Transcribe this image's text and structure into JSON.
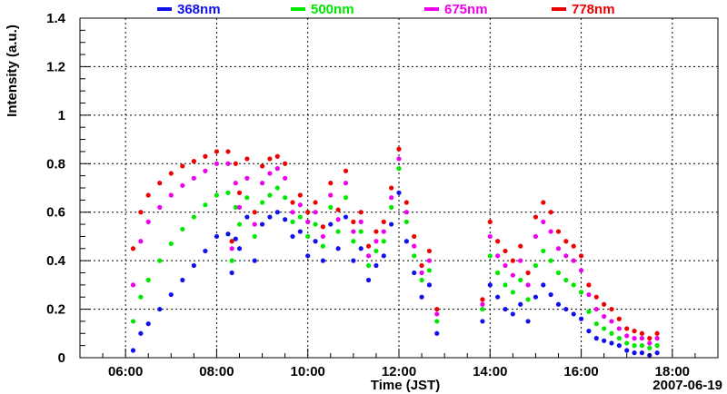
{
  "chart_data": {
    "type": "scatter",
    "title": "",
    "xlabel": "Time (JST)",
    "ylabel": "Intensity (a.u.)",
    "date_label": "2007-06-19",
    "xlim": [
      "05:00",
      "19:00"
    ],
    "ylim": [
      0,
      1.4
    ],
    "grid": true,
    "legend_position": "top",
    "x_ticks": [
      "06:00",
      "08:00",
      "10:00",
      "12:00",
      "14:00",
      "16:00",
      "18:00"
    ],
    "y_ticks": [
      "0",
      "0.2",
      "0.4",
      "0.6",
      "0.8",
      "1",
      "1.2",
      "1.4"
    ],
    "series": [
      {
        "name": "368nm",
        "color": "#1010ee",
        "x": [
          "06:10",
          "06:20",
          "06:30",
          "06:45",
          "07:00",
          "07:15",
          "07:30",
          "07:45",
          "08:00",
          "08:15",
          "08:20",
          "08:25",
          "08:30",
          "08:40",
          "08:50",
          "09:00",
          "09:10",
          "09:20",
          "09:30",
          "09:40",
          "09:50",
          "10:00",
          "10:10",
          "10:20",
          "10:30",
          "10:40",
          "10:50",
          "11:00",
          "11:10",
          "11:20",
          "11:30",
          "11:40",
          "11:50",
          "12:00",
          "12:10",
          "12:20",
          "12:30",
          "12:40",
          "12:50",
          "13:50",
          "14:00",
          "14:10",
          "14:20",
          "14:30",
          "14:40",
          "14:50",
          "15:00",
          "15:10",
          "15:20",
          "15:30",
          "15:40",
          "15:50",
          "16:00",
          "16:10",
          "16:20",
          "16:30",
          "16:40",
          "16:50",
          "17:00",
          "17:10",
          "17:20",
          "17:30",
          "17:40"
        ],
        "y": [
          0.03,
          0.1,
          0.14,
          0.2,
          0.26,
          0.32,
          0.38,
          0.44,
          0.5,
          0.51,
          0.35,
          0.49,
          0.45,
          0.58,
          0.4,
          0.55,
          0.58,
          0.6,
          0.57,
          0.5,
          0.52,
          0.42,
          0.48,
          0.4,
          0.55,
          0.45,
          0.58,
          0.4,
          0.45,
          0.32,
          0.38,
          0.42,
          0.55,
          0.68,
          0.48,
          0.35,
          0.25,
          0.3,
          0.1,
          0.15,
          0.3,
          0.25,
          0.2,
          0.18,
          0.22,
          0.15,
          0.25,
          0.3,
          0.26,
          0.22,
          0.2,
          0.18,
          0.16,
          0.11,
          0.08,
          0.07,
          0.06,
          0.05,
          0.03,
          0.02,
          0.02,
          0.01,
          0.02
        ]
      },
      {
        "name": "500nm",
        "color": "#00e800",
        "x": [
          "06:10",
          "06:20",
          "06:30",
          "06:45",
          "07:00",
          "07:15",
          "07:30",
          "07:45",
          "08:00",
          "08:15",
          "08:20",
          "08:25",
          "08:30",
          "08:40",
          "08:50",
          "09:00",
          "09:10",
          "09:20",
          "09:30",
          "09:40",
          "09:50",
          "10:00",
          "10:10",
          "10:20",
          "10:30",
          "10:40",
          "10:50",
          "11:00",
          "11:10",
          "11:20",
          "11:30",
          "11:40",
          "11:50",
          "12:00",
          "12:10",
          "12:20",
          "12:30",
          "12:40",
          "12:50",
          "13:50",
          "14:00",
          "14:10",
          "14:20",
          "14:30",
          "14:40",
          "14:50",
          "15:00",
          "15:10",
          "15:20",
          "15:30",
          "15:40",
          "15:50",
          "16:00",
          "16:10",
          "16:20",
          "16:30",
          "16:40",
          "16:50",
          "17:00",
          "17:10",
          "17:20",
          "17:30",
          "17:40"
        ],
        "y": [
          0.15,
          0.25,
          0.32,
          0.4,
          0.47,
          0.53,
          0.58,
          0.63,
          0.67,
          0.68,
          0.4,
          0.62,
          0.55,
          0.66,
          0.5,
          0.64,
          0.67,
          0.7,
          0.66,
          0.56,
          0.58,
          0.5,
          0.55,
          0.46,
          0.62,
          0.52,
          0.66,
          0.48,
          0.52,
          0.38,
          0.44,
          0.48,
          0.62,
          0.78,
          0.56,
          0.42,
          0.32,
          0.36,
          0.15,
          0.2,
          0.42,
          0.35,
          0.3,
          0.27,
          0.32,
          0.24,
          0.38,
          0.44,
          0.4,
          0.35,
          0.32,
          0.3,
          0.27,
          0.19,
          0.14,
          0.12,
          0.1,
          0.08,
          0.06,
          0.05,
          0.05,
          0.04,
          0.05
        ]
      },
      {
        "name": "675nm",
        "color": "#ee00ee",
        "x": [
          "06:10",
          "06:20",
          "06:30",
          "06:45",
          "07:00",
          "07:15",
          "07:30",
          "07:45",
          "08:00",
          "08:15",
          "08:20",
          "08:25",
          "08:30",
          "08:40",
          "08:50",
          "09:00",
          "09:10",
          "09:20",
          "09:30",
          "09:40",
          "09:50",
          "10:00",
          "10:10",
          "10:20",
          "10:30",
          "10:40",
          "10:50",
          "11:00",
          "11:10",
          "11:20",
          "11:30",
          "11:40",
          "11:50",
          "12:00",
          "12:10",
          "12:20",
          "12:30",
          "12:40",
          "12:50",
          "13:50",
          "14:00",
          "14:10",
          "14:20",
          "14:30",
          "14:40",
          "14:50",
          "15:00",
          "15:10",
          "15:20",
          "15:30",
          "15:40",
          "15:50",
          "16:00",
          "16:10",
          "16:20",
          "16:30",
          "16:40",
          "16:50",
          "17:00",
          "17:10",
          "17:20",
          "17:30",
          "17:40"
        ],
        "y": [
          0.3,
          0.48,
          0.56,
          0.62,
          0.67,
          0.71,
          0.74,
          0.77,
          0.8,
          0.8,
          0.45,
          0.72,
          0.62,
          0.74,
          0.55,
          0.72,
          0.76,
          0.78,
          0.74,
          0.6,
          0.63,
          0.56,
          0.6,
          0.5,
          0.67,
          0.57,
          0.72,
          0.52,
          0.56,
          0.42,
          0.48,
          0.52,
          0.66,
          0.82,
          0.6,
          0.46,
          0.35,
          0.4,
          0.18,
          0.22,
          0.5,
          0.42,
          0.38,
          0.34,
          0.4,
          0.3,
          0.5,
          0.56,
          0.52,
          0.45,
          0.42,
          0.4,
          0.36,
          0.26,
          0.2,
          0.17,
          0.15,
          0.12,
          0.09,
          0.08,
          0.08,
          0.06,
          0.08
        ]
      },
      {
        "name": "778nm",
        "color": "#ee0000",
        "x": [
          "06:10",
          "06:20",
          "06:30",
          "06:45",
          "07:00",
          "07:15",
          "07:30",
          "07:45",
          "08:00",
          "08:15",
          "08:20",
          "08:25",
          "08:30",
          "08:40",
          "08:50",
          "09:00",
          "09:10",
          "09:20",
          "09:30",
          "09:40",
          "09:50",
          "10:00",
          "10:10",
          "10:20",
          "10:30",
          "10:40",
          "10:50",
          "11:00",
          "11:10",
          "11:20",
          "11:30",
          "11:40",
          "11:50",
          "12:00",
          "12:10",
          "12:20",
          "12:30",
          "12:40",
          "12:50",
          "13:50",
          "14:00",
          "14:10",
          "14:20",
          "14:30",
          "14:40",
          "14:50",
          "15:00",
          "15:10",
          "15:20",
          "15:30",
          "15:40",
          "15:50",
          "16:00",
          "16:10",
          "16:20",
          "16:30",
          "16:40",
          "16:50",
          "17:00",
          "17:10",
          "17:20",
          "17:30",
          "17:40"
        ],
        "y": [
          0.45,
          0.6,
          0.67,
          0.72,
          0.76,
          0.79,
          0.81,
          0.83,
          0.85,
          0.85,
          0.48,
          0.8,
          0.68,
          0.82,
          0.6,
          0.79,
          0.82,
          0.83,
          0.8,
          0.64,
          0.67,
          0.6,
          0.64,
          0.54,
          0.72,
          0.61,
          0.77,
          0.56,
          0.6,
          0.46,
          0.52,
          0.56,
          0.7,
          0.86,
          0.64,
          0.5,
          0.38,
          0.44,
          0.2,
          0.24,
          0.56,
          0.48,
          0.44,
          0.4,
          0.46,
          0.35,
          0.58,
          0.64,
          0.6,
          0.52,
          0.48,
          0.46,
          0.42,
          0.3,
          0.25,
          0.22,
          0.2,
          0.16,
          0.12,
          0.11,
          0.1,
          0.08,
          0.1
        ]
      }
    ]
  }
}
